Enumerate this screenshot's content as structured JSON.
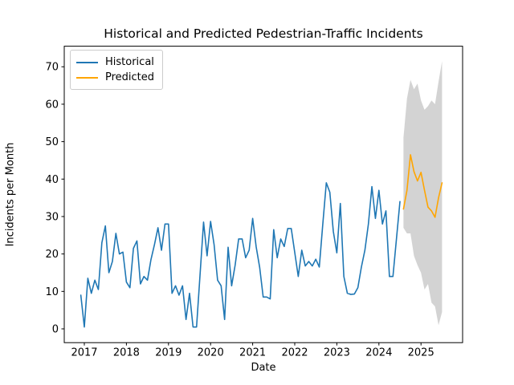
{
  "chart_data": {
    "type": "line",
    "title": "Historical and Predicted Pedestrian-Traffic Incidents",
    "xlabel": "Date",
    "ylabel": "Incidents per Month",
    "xticks": [
      2017,
      2018,
      2019,
      2020,
      2021,
      2022,
      2023,
      2024,
      2025
    ],
    "yticks": [
      0,
      10,
      20,
      30,
      40,
      50,
      60,
      70
    ],
    "ylim": [
      -3.7,
      75.5
    ],
    "grid": false,
    "legend_position": "upper left",
    "series": [
      {
        "id": "historical",
        "label": "Historical",
        "color": "#1f77b4",
        "start": "2016-12",
        "freq": "monthly",
        "values": [
          9,
          0.5,
          13.5,
          9.5,
          13,
          10.5,
          23,
          27.5,
          15,
          18,
          25.5,
          20,
          20.5,
          12.5,
          11,
          21.5,
          23.5,
          12,
          14,
          13,
          18.5,
          22.5,
          27,
          21,
          28,
          28,
          9.5,
          11.5,
          9,
          11.5,
          2.5,
          9.5,
          0.5,
          0.5,
          14.5,
          28.5,
          19.5,
          28.7,
          22.5,
          13,
          11.5,
          2.5,
          21.8,
          11.5,
          17,
          24,
          24,
          19,
          21,
          29.5,
          21.9,
          16.4,
          8.5,
          8.5,
          8,
          26.5,
          19,
          24,
          22,
          26.8,
          26.8,
          20.4,
          14,
          21,
          16.8,
          18,
          16.8,
          18.6,
          16.5,
          28,
          39,
          36.5,
          26,
          20.3,
          33.5,
          14,
          9.5,
          9.2,
          9.3,
          11,
          16.5,
          21,
          28,
          38,
          29.5,
          37,
          28,
          31.5,
          14,
          14,
          24,
          34
        ]
      },
      {
        "id": "predicted",
        "label": "Predicted",
        "color": "#ffa500",
        "start": "2024-08",
        "freq": "monthly",
        "values": [
          32,
          37,
          46.5,
          42,
          39.5,
          41.8,
          37,
          32.5,
          31.5,
          29.8,
          35,
          39
        ]
      }
    ],
    "band": {
      "id": "confidence-interval",
      "start": "2024-08",
      "freq": "monthly",
      "color": "rgba(128,128,128,0.35)",
      "lower": [
        27,
        25.5,
        25.5,
        19.5,
        17,
        15,
        10.5,
        12,
        7,
        6,
        1,
        4.5
      ],
      "upper": [
        51,
        61.5,
        66.5,
        64,
        65.5,
        61,
        58.5,
        59.5,
        61,
        60,
        66,
        71.5
      ]
    }
  }
}
